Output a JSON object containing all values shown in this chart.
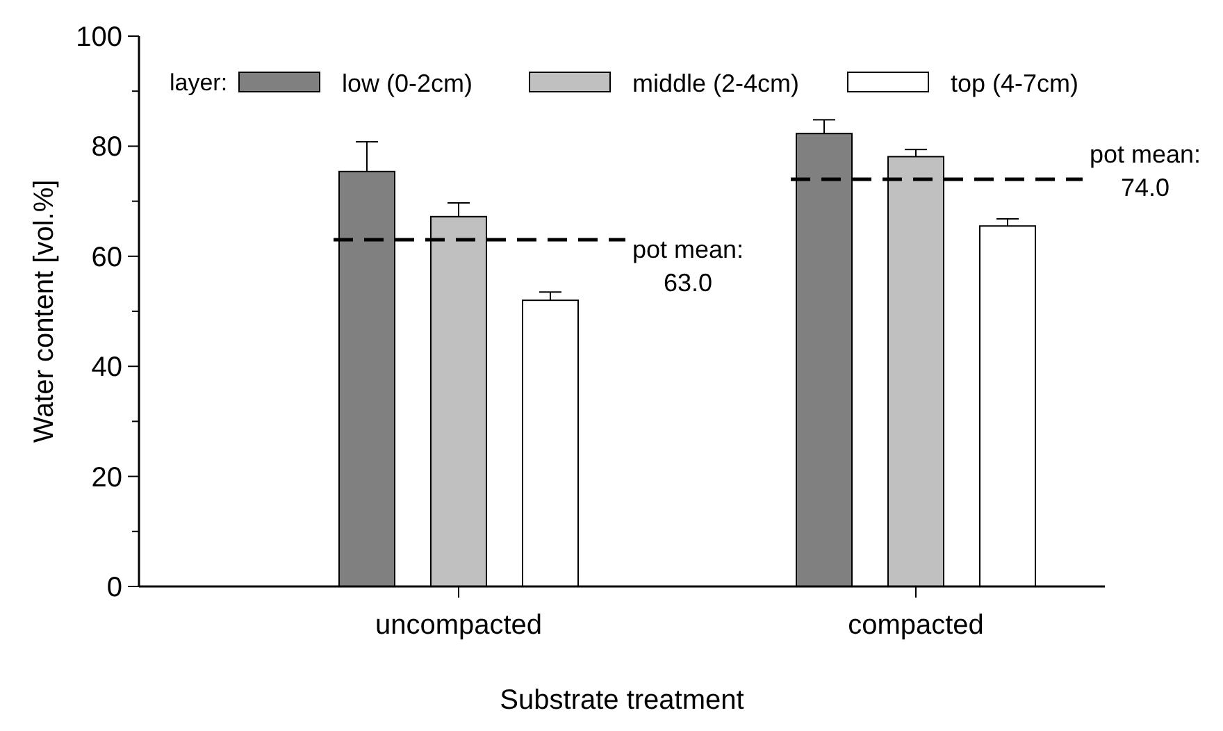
{
  "chart_data": {
    "type": "bar",
    "xlabel": "Substrate treatment",
    "ylabel": "Water content [vol.%]",
    "legend_title": "layer:",
    "legend": "top",
    "categories": [
      "uncompacted",
      "compacted"
    ],
    "series": [
      {
        "name": "low (0-2cm)",
        "color": "#808080",
        "values": [
          75.4,
          82.3
        ],
        "errors": [
          5.4,
          2.5
        ]
      },
      {
        "name": "middle (2-4cm)",
        "color": "#c0c0c0",
        "values": [
          67.2,
          78.1
        ],
        "errors": [
          2.5,
          1.3
        ]
      },
      {
        "name": "top (4-7cm)",
        "color": "#ffffff",
        "values": [
          52.0,
          65.5
        ],
        "errors": [
          1.5,
          1.3
        ]
      }
    ],
    "ylim": [
      0,
      100
    ],
    "yticks": [
      0,
      {
        "value": 10,
        "label": null
      },
      20,
      {
        "value": 30,
        "label": null
      },
      40,
      {
        "value": 50,
        "label": null
      },
      60,
      {
        "value": 70,
        "label": null
      },
      80,
      {
        "value": 90,
        "label": null
      },
      100
    ],
    "ref_lines": [
      {
        "axis": "y",
        "value": 63.0,
        "label": "pot mean:\n63.0",
        "line_style": "dashed"
      },
      {
        "axis": "y",
        "value": 74.0,
        "label": "pot mean:\n74.0",
        "line_style": "dashed"
      }
    ]
  }
}
